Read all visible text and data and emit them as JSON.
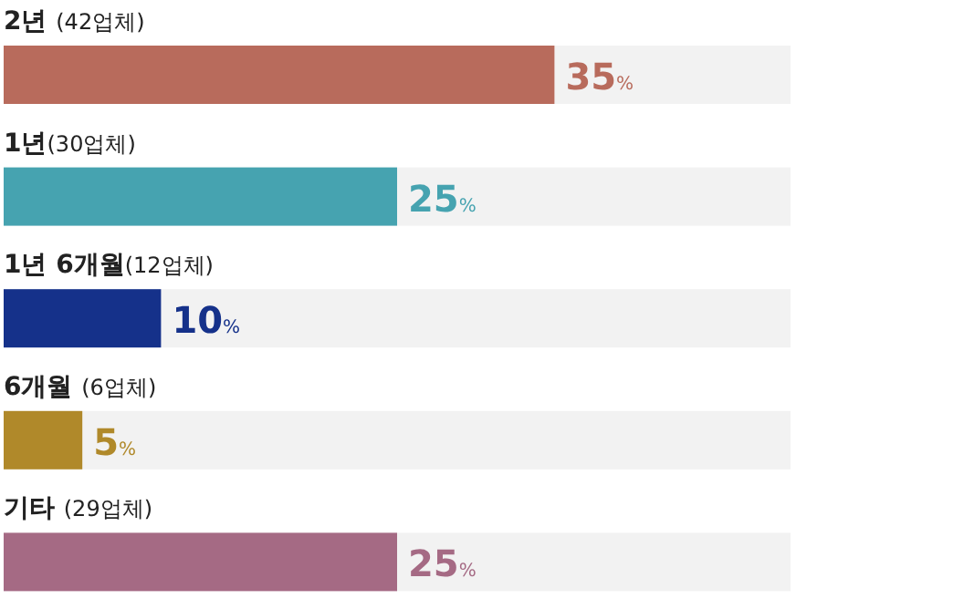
{
  "chart_data": {
    "type": "bar",
    "orientation": "horizontal",
    "categories": [
      "2년 (42업체)",
      "1년(30업체)",
      "1년 6개월(12업체)",
      "6개월 (6업체)",
      "기타 (29업체)"
    ],
    "values": [
      35,
      25,
      10,
      5,
      25
    ],
    "colors": [
      "#b86b5c",
      "#46a3b0",
      "#15318a",
      "#b0892a",
      "#a56a84"
    ],
    "value_labels": [
      "35%",
      "25%",
      "10%",
      "5%",
      "25%"
    ],
    "xlim": [
      0,
      50
    ]
  }
}
